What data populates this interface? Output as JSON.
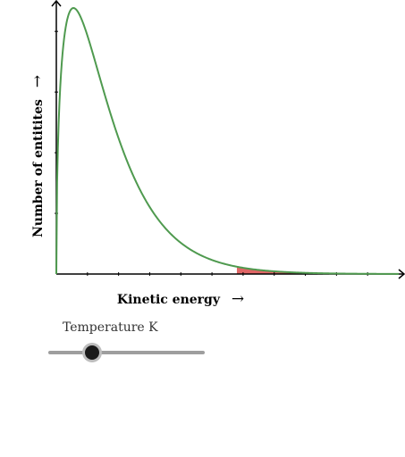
{
  "chart_data": {
    "type": "line",
    "title": "",
    "xlabel": "Kinetic energy",
    "ylabel": "Number of entitites",
    "x_arrow": "→",
    "y_arrow": "→",
    "xlim": [
      0,
      11
    ],
    "ylim": [
      0,
      4.4
    ],
    "grid": false,
    "legend": "none",
    "series": [
      {
        "curve": "k*x^a*exp(-x/b)",
        "k": 9.75,
        "a": 0.5,
        "b": 1.1,
        "color": "#4f9a4f"
      }
    ],
    "shaded_region": {
      "x_from": 5.8,
      "x_to": 11,
      "color": "#e06666"
    },
    "x_ticks": [
      1,
      2,
      3,
      4,
      5,
      6,
      7,
      8,
      9,
      10
    ],
    "y_ticks": [
      1,
      2,
      3,
      4
    ]
  },
  "slider": {
    "label": "Temperature K",
    "value_fraction": 0.25,
    "track_color": "#9e9e9e",
    "thumb_color": "#1a1a1a"
  }
}
